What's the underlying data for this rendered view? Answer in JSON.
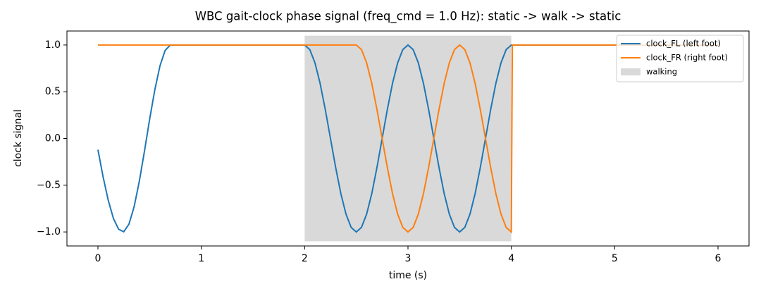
{
  "chart_data": {
    "type": "line",
    "title": "WBC gait-clock phase signal (freq_cmd = 1.0 Hz): static -> walk -> static",
    "xlabel": "time (s)",
    "ylabel": "clock signal",
    "x": [
      0,
      0.05,
      0.1,
      0.15,
      0.2,
      0.25,
      0.3,
      0.35,
      0.4,
      0.45,
      0.5,
      0.55,
      0.6,
      0.65,
      0.7,
      2.0,
      2.05,
      2.1,
      2.15,
      2.2,
      2.25,
      2.3,
      2.35,
      2.4,
      2.45,
      2.5,
      2.55,
      2.6,
      2.65,
      2.7,
      2.75,
      2.8,
      2.85,
      2.9,
      2.95,
      3.0,
      3.05,
      3.1,
      3.15,
      3.2,
      3.25,
      3.3,
      3.35,
      3.4,
      3.45,
      3.5,
      3.55,
      3.6,
      3.65,
      3.7,
      3.75,
      3.8,
      3.85,
      3.9,
      3.95,
      4.0,
      4.01,
      6.0
    ],
    "series": [
      {
        "name": "clock_FL (left foot)",
        "color": "#1f77b4",
        "values": [
          -0.12,
          -0.411,
          -0.663,
          -0.856,
          -0.971,
          -0.998,
          -0.917,
          -0.731,
          -0.46,
          -0.137,
          0.204,
          0.519,
          0.776,
          0.942,
          1.0,
          1,
          0.951,
          0.809,
          0.588,
          0.309,
          0,
          -0.309,
          -0.588,
          -0.809,
          -0.951,
          -1,
          -0.951,
          -0.809,
          -0.588,
          -0.309,
          0,
          0.309,
          0.588,
          0.809,
          0.951,
          1,
          0.951,
          0.809,
          0.588,
          0.309,
          0,
          -0.309,
          -0.588,
          -0.809,
          -0.951,
          -1,
          -0.951,
          -0.809,
          -0.588,
          -0.309,
          0,
          0.309,
          0.588,
          0.809,
          0.951,
          1,
          1,
          1
        ]
      },
      {
        "name": "clock_FR (right foot)",
        "color": "#ff7f0e",
        "values": [
          1,
          1,
          1,
          1,
          1,
          1,
          1,
          1,
          1,
          1,
          1,
          1,
          1,
          1,
          1,
          1,
          1,
          1,
          1,
          1,
          1,
          1,
          1,
          1,
          1,
          1,
          0.951,
          0.809,
          0.588,
          0.309,
          0,
          -0.309,
          -0.588,
          -0.809,
          -0.951,
          -1,
          -0.951,
          -0.809,
          -0.588,
          -0.309,
          0,
          0.309,
          0.588,
          0.809,
          0.951,
          1,
          0.951,
          0.809,
          0.588,
          0.309,
          0,
          -0.309,
          -0.588,
          -0.809,
          -0.951,
          -1,
          1,
          1
        ]
      }
    ],
    "span": {
      "label": "walking",
      "color": "#d9d9d9",
      "x": [
        2,
        4
      ],
      "y": [
        -1.1,
        1.1
      ]
    },
    "xlim": [
      -0.3,
      6.3
    ],
    "ylim": [
      -1.15,
      1.15
    ],
    "xticks": [
      0,
      1,
      2,
      3,
      4,
      5,
      6
    ],
    "yticks": [
      {
        "value": -1,
        "label": "−1.0"
      },
      {
        "value": -0.5,
        "label": "−0.5"
      },
      {
        "value": 0,
        "label": "0.0"
      },
      {
        "value": 0.5,
        "label": "0.5"
      },
      {
        "value": 1,
        "label": "1.0"
      }
    ],
    "legend": "upper right"
  }
}
